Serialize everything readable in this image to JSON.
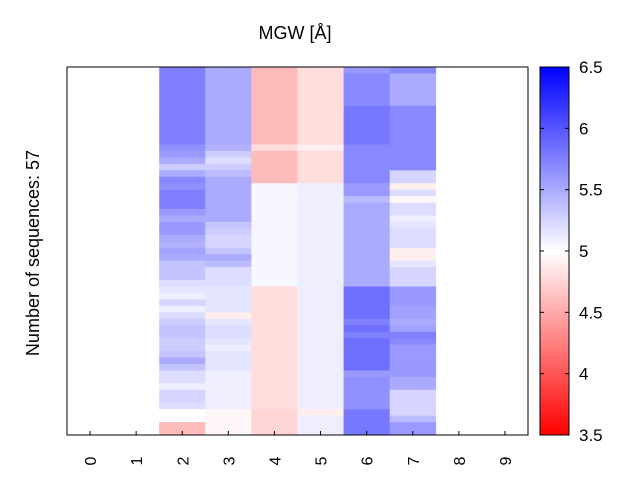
{
  "chart_data": {
    "type": "heatmap",
    "title": "MGW [Å]",
    "ylabel": "Number of sequences: 57",
    "xlabel": "",
    "x_ticks": [
      "0",
      "1",
      "2",
      "3",
      "4",
      "5",
      "6",
      "7",
      "8",
      "9"
    ],
    "n_rows": 57,
    "colorbar": {
      "min": 3.5,
      "max": 6.5,
      "ticks": [
        "6.5",
        "6",
        "5.5",
        "5",
        "4.5",
        "4",
        "3.5"
      ],
      "colormap": "bwr",
      "low_color": "#ff0000",
      "mid_color": "#ffffff",
      "high_color": "#0000ff"
    },
    "columns": [
      {
        "position": 0,
        "values": []
      },
      {
        "position": 1,
        "values": []
      },
      {
        "position": 2,
        "values": [
          5.75,
          5.75,
          5.75,
          5.75,
          5.75,
          5.75,
          5.75,
          5.75,
          5.75,
          5.75,
          5.75,
          5.75,
          5.65,
          5.6,
          5.5,
          5.3,
          5.5,
          5.7,
          5.65,
          5.75,
          5.75,
          5.75,
          5.6,
          5.5,
          5.6,
          5.6,
          5.5,
          5.45,
          5.55,
          5.5,
          5.35,
          5.35,
          5.35,
          5.2,
          5.15,
          5.1,
          5.25,
          5.1,
          5.2,
          5.3,
          5.35,
          5.35,
          5.3,
          5.3,
          5.35,
          5.5,
          5.35,
          5.2,
          5.2,
          5.1,
          5.25,
          5.25,
          5.2,
          5.0,
          5.0,
          4.6,
          4.6
        ]
      },
      {
        "position": 3,
        "values": [
          5.5,
          5.5,
          5.5,
          5.5,
          5.5,
          5.5,
          5.5,
          5.5,
          5.5,
          5.5,
          5.5,
          5.5,
          5.45,
          5.3,
          5.2,
          5.3,
          5.4,
          5.5,
          5.5,
          5.5,
          5.5,
          5.5,
          5.5,
          5.5,
          5.35,
          5.3,
          5.25,
          5.25,
          5.35,
          5.5,
          5.4,
          5.2,
          5.2,
          5.2,
          5.15,
          5.15,
          5.15,
          5.15,
          4.9,
          5.15,
          5.2,
          5.2,
          5.15,
          5.1,
          5.15,
          5.15,
          5.15,
          5.1,
          5.1,
          5.1,
          5.1,
          5.1,
          5.1,
          4.95,
          4.95,
          4.95,
          4.95
        ]
      },
      {
        "position": 4,
        "values": [
          4.6,
          4.6,
          4.6,
          4.6,
          4.6,
          4.6,
          4.6,
          4.6,
          4.6,
          4.6,
          4.6,
          4.6,
          4.8,
          4.6,
          4.6,
          4.6,
          4.6,
          4.6,
          5.05,
          5.05,
          5.05,
          5.05,
          5.05,
          5.05,
          5.05,
          5.05,
          5.05,
          5.05,
          5.05,
          5.05,
          5.05,
          5.05,
          5.05,
          5.05,
          4.8,
          4.8,
          4.8,
          4.8,
          4.8,
          4.8,
          4.8,
          4.8,
          4.8,
          4.8,
          4.8,
          4.8,
          4.8,
          4.8,
          4.8,
          4.8,
          4.8,
          4.8,
          4.8,
          4.75,
          4.75,
          4.75,
          4.75
        ]
      },
      {
        "position": 5,
        "values": [
          4.8,
          4.8,
          4.8,
          4.8,
          4.8,
          4.8,
          4.8,
          4.8,
          4.8,
          4.8,
          4.8,
          4.8,
          4.9,
          4.8,
          4.8,
          4.8,
          4.8,
          4.8,
          5.1,
          5.1,
          5.1,
          5.1,
          5.1,
          5.1,
          5.1,
          5.1,
          5.1,
          5.1,
          5.1,
          5.1,
          5.1,
          5.1,
          5.1,
          5.1,
          5.1,
          5.1,
          5.1,
          5.1,
          5.1,
          5.1,
          5.1,
          5.1,
          5.1,
          5.1,
          5.1,
          5.1,
          5.1,
          5.1,
          5.1,
          5.1,
          5.1,
          5.1,
          5.1,
          4.9,
          5.1,
          5.1,
          5.1
        ]
      },
      {
        "position": 6,
        "values": [
          5.6,
          5.7,
          5.7,
          5.7,
          5.7,
          5.7,
          5.8,
          5.8,
          5.8,
          5.8,
          5.8,
          5.8,
          5.7,
          5.7,
          5.7,
          5.7,
          5.7,
          5.7,
          5.6,
          5.6,
          5.4,
          5.5,
          5.5,
          5.5,
          5.5,
          5.5,
          5.5,
          5.5,
          5.5,
          5.5,
          5.5,
          5.5,
          5.5,
          5.5,
          5.85,
          5.85,
          5.85,
          5.85,
          5.85,
          5.75,
          5.85,
          5.75,
          5.85,
          5.85,
          5.85,
          5.85,
          5.85,
          5.6,
          5.65,
          5.65,
          5.65,
          5.65,
          5.65,
          5.8,
          5.8,
          5.8,
          5.8
        ]
      },
      {
        "position": 7,
        "values": [
          5.7,
          5.5,
          5.5,
          5.5,
          5.5,
          5.5,
          5.7,
          5.7,
          5.7,
          5.7,
          5.7,
          5.7,
          5.7,
          5.7,
          5.7,
          5.7,
          5.25,
          5.25,
          4.9,
          5.2,
          4.95,
          5.2,
          5.2,
          5.1,
          5.15,
          5.2,
          5.2,
          5.2,
          4.9,
          4.9,
          5.15,
          5.25,
          5.25,
          5.25,
          5.6,
          5.6,
          5.6,
          5.55,
          5.55,
          5.5,
          5.55,
          5.75,
          5.7,
          5.6,
          5.6,
          5.6,
          5.6,
          5.6,
          5.5,
          5.5,
          5.25,
          5.25,
          5.25,
          5.25,
          5.4,
          5.6,
          5.6
        ]
      },
      {
        "position": 8,
        "values": []
      },
      {
        "position": 9,
        "values": []
      }
    ]
  }
}
